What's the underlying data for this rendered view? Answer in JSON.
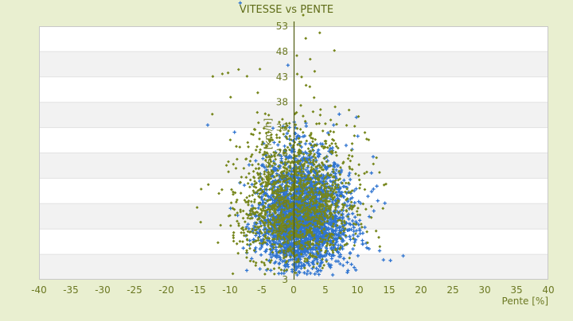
{
  "page": {
    "background": "#e9efd0"
  },
  "chart_data": {
    "type": "scatter",
    "title": "VITESSE vs PENTE",
    "xlabel": "Pente [%]",
    "ylabel": "Vitesse [km/h]",
    "xlim": [
      -40,
      40
    ],
    "ylim": [
      3,
      53
    ],
    "x_ticks": [
      -40,
      -35,
      -30,
      -25,
      -20,
      -15,
      -10,
      -5,
      0,
      5,
      10,
      15,
      20,
      25,
      30,
      35,
      40
    ],
    "y_ticks": [
      3,
      8,
      13,
      18,
      23,
      28,
      33,
      38,
      43,
      48,
      53
    ],
    "grid": {
      "band_colors": [
        "#f2f2f2",
        "#ffffff"
      ],
      "gridline_color": "#e2e2e2",
      "border_color": "#c8c8c8",
      "plot_background": "#ffffff"
    },
    "axis": {
      "zero_line_color": "#4f5c10",
      "text_color": "#6b7822",
      "title_color": "#5f6c18",
      "tick_font_size": 12,
      "title_font_size": 13
    },
    "legend": {
      "visible": false
    },
    "series": [
      {
        "name": "blue-series",
        "marker": "cross",
        "color": "#2f74d0",
        "count": 2600,
        "seed": 11,
        "distribution": {
          "cx": 1.2,
          "cy": 15.0,
          "sx_left": 3.2,
          "sx_right": 3.8,
          "sy_down": 4.8,
          "sy_up": 6.5,
          "x_min": -14.0,
          "x_max": 17.5,
          "y_min": 3.8,
          "y_max": 40.0
        },
        "outlier_points": [
          [
            -0.9,
            45.3
          ],
          [
            -13.5,
            33.5
          ],
          [
            17.2,
            7.7
          ],
          [
            15.2,
            6.8
          ],
          [
            14.1,
            6.9
          ],
          [
            13.5,
            8.7
          ],
          [
            11.5,
            9.3
          ],
          [
            -8.4,
            57.6
          ]
        ]
      },
      {
        "name": "olive-series",
        "marker": "diamond",
        "color": "#76861b",
        "count": 1500,
        "seed": 7,
        "distribution": {
          "cx": 0.6,
          "cy": 18.0,
          "sx_left": 4.8,
          "sx_right": 4.5,
          "sy_down": 5.8,
          "sy_up": 8.0,
          "x_min": -16.5,
          "x_max": 14.5,
          "y_min": 3.8,
          "y_max": 53.5
        },
        "outlier_points": [
          [
            4.1,
            51.7
          ],
          [
            1.9,
            50.6
          ],
          [
            6.4,
            48.2
          ],
          [
            0.5,
            47.2
          ],
          [
            2.6,
            46.5
          ],
          [
            1.5,
            55.2
          ],
          [
            -11.2,
            43.6
          ],
          [
            -12.7,
            43.1
          ],
          [
            -10.3,
            43.8
          ],
          [
            -9.9,
            39.0
          ],
          [
            3.3,
            44.1
          ]
        ]
      }
    ]
  }
}
